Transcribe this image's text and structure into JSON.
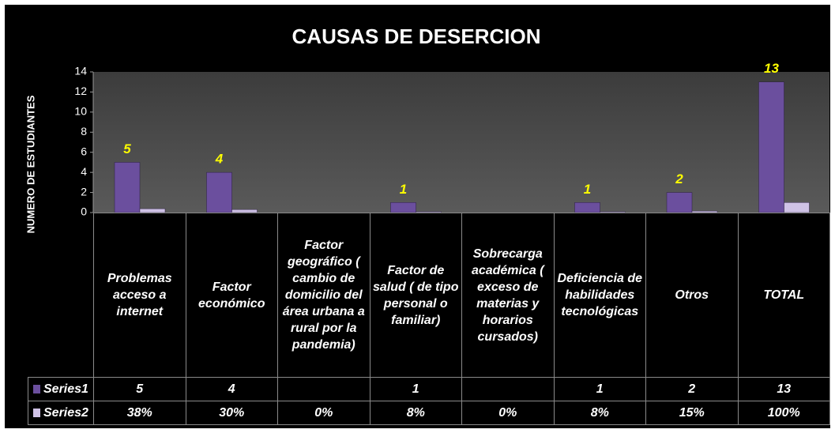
{
  "chart_data": {
    "type": "bar",
    "title": "CAUSAS DE DESERCION",
    "y_label": "NUMERO DE ESTUDIANTES",
    "categories": [
      "Problemas acceso a internet",
      "Factor económico",
      "Factor geográfico ( cambio de domicilio del área urbana a rural por la pandemia)",
      "Factor de salud  ( de tipo personal o familiar)",
      "Sobrecarga académica ( exceso de materias y horarios cursados)",
      "Deficiencia de habilidades tecnológicas",
      "Otros",
      "TOTAL"
    ],
    "series": [
      {
        "name": "Series1",
        "color": "#6b4f9e",
        "values": [
          5,
          4,
          null,
          1,
          null,
          1,
          2,
          13
        ]
      },
      {
        "name": "Series2",
        "color": "#cfc2e6",
        "values": [
          0.38,
          0.3,
          0,
          0.08,
          0,
          0.08,
          0.15,
          1
        ],
        "value_labels": [
          "38%",
          "30%",
          "0%",
          "8%",
          "0%",
          "8%",
          "15%",
          "100%"
        ]
      }
    ],
    "ylim": [
      0,
      14
    ],
    "yticks": [
      0,
      2,
      4,
      6,
      8,
      10,
      12,
      14
    ],
    "grid": false
  }
}
